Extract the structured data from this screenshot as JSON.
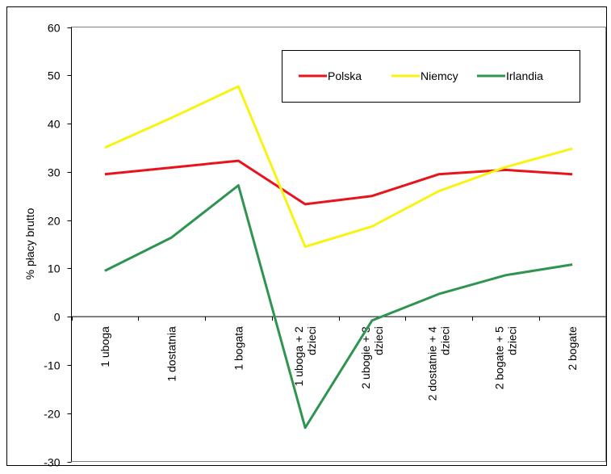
{
  "chart_data": {
    "type": "line",
    "title": "",
    "xlabel": "",
    "ylabel": "% płacy brutto",
    "ylim": [
      -30,
      60
    ],
    "yticks": [
      -30,
      -20,
      -10,
      0,
      10,
      20,
      30,
      40,
      50,
      60
    ],
    "grid": false,
    "legend_position": "top-right",
    "categories": [
      "1 uboga",
      "1 dostatnia",
      "1 bogata",
      "1 uboga + 2 dzieci",
      "2 ubogie + 3 dzieci",
      "2 dostatnie + 4 dzieci",
      "2 bogate + 5 dzieci",
      "2 bogate"
    ],
    "category_lines": [
      [
        "1 uboga"
      ],
      [
        "1 dostatnia"
      ],
      [
        "1 bogata"
      ],
      [
        "1 uboga + 2",
        "dzieci"
      ],
      [
        "2 ubogie + 3",
        "dzieci"
      ],
      [
        "2 dostatnie + 4",
        "dzieci"
      ],
      [
        "2 bogate + 5",
        "dzieci"
      ],
      [
        "2 bogate"
      ]
    ],
    "series": [
      {
        "name": "Polska",
        "color": "#e8141c",
        "values": [
          29.5,
          30.9,
          32.3,
          23.3,
          25.0,
          29.5,
          30.4,
          29.5
        ]
      },
      {
        "name": "Niemcy",
        "color": "#f8f313",
        "values": [
          35.0,
          41.2,
          47.7,
          14.5,
          18.7,
          26.0,
          31.0,
          34.8
        ]
      },
      {
        "name": "Irlandia",
        "color": "#2e9450",
        "values": [
          9.5,
          16.4,
          27.2,
          -23.0,
          -0.8,
          4.7,
          8.6,
          10.8
        ]
      }
    ]
  }
}
